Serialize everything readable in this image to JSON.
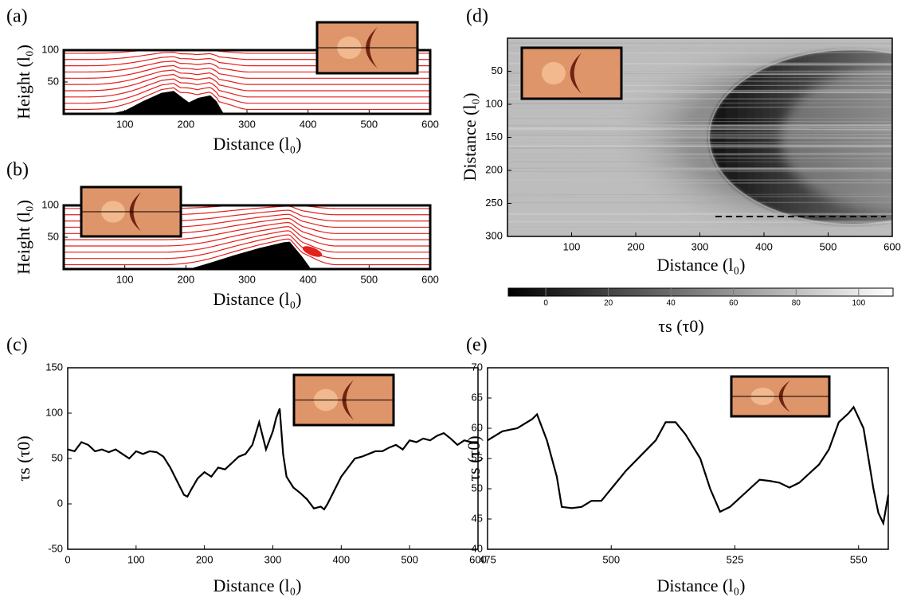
{
  "chart_data": [
    {
      "type": "streamline",
      "panel": "(a)",
      "xlabel": "Distance (l₀)",
      "ylabel": "Height (l₀)",
      "x": [
        75,
        100,
        130,
        160,
        180,
        195,
        205,
        220,
        240,
        250,
        262
      ],
      "values": [
        0,
        5,
        20,
        33,
        36,
        25,
        18,
        25,
        29,
        20,
        0
      ],
      "xlim": [
        0,
        600
      ],
      "xticks": [
        100,
        200,
        300,
        400,
        500,
        600
      ],
      "ylim": [
        0,
        100
      ],
      "yticks": [
        50,
        100
      ],
      "color": "#000000",
      "line_color": "#e3201b"
    },
    {
      "type": "streamline",
      "panel": "(b)",
      "xlabel": "Distance (l₀)",
      "ylabel": "Height (l₀)",
      "x": [
        205,
        240,
        280,
        320,
        360,
        370,
        390,
        405
      ],
      "values": [
        0,
        10,
        22,
        33,
        42,
        43,
        20,
        0
      ],
      "xlim": [
        0,
        600
      ],
      "xticks": [
        100,
        200,
        300,
        400,
        500,
        600
      ],
      "ylim": [
        0,
        100
      ],
      "yticks": [
        50,
        100
      ],
      "color": "#000000",
      "line_color": "#e3201b"
    },
    {
      "type": "line",
      "panel": "(c)",
      "xlabel": "Distance (l₀)",
      "ylabel": "τs  (τ0)",
      "x": [
        0,
        10,
        20,
        30,
        40,
        50,
        60,
        70,
        80,
        90,
        100,
        110,
        120,
        130,
        140,
        150,
        160,
        170,
        175,
        180,
        190,
        200,
        210,
        220,
        230,
        240,
        250,
        260,
        270,
        280,
        285,
        290,
        300,
        305,
        310,
        315,
        320,
        330,
        340,
        350,
        360,
        370,
        375,
        380,
        390,
        400,
        410,
        420,
        430,
        440,
        450,
        460,
        470,
        480,
        490,
        500,
        510,
        520,
        530,
        540,
        550,
        560,
        570,
        580,
        590,
        600
      ],
      "values": [
        60,
        58,
        68,
        65,
        58,
        60,
        57,
        60,
        55,
        50,
        58,
        55,
        58,
        57,
        52,
        40,
        25,
        10,
        8,
        15,
        28,
        35,
        30,
        40,
        38,
        45,
        52,
        55,
        65,
        90,
        75,
        60,
        80,
        95,
        105,
        55,
        30,
        18,
        12,
        5,
        -5,
        -3,
        -6,
        0,
        15,
        30,
        40,
        50,
        52,
        55,
        58,
        58,
        62,
        65,
        60,
        70,
        68,
        72,
        70,
        75,
        78,
        72,
        65,
        70,
        68,
        68
      ],
      "xlim": [
        0,
        600
      ],
      "xticks": [
        0,
        100,
        200,
        300,
        400,
        500,
        600
      ],
      "ylim": [
        -50,
        150
      ],
      "yticks": [
        -50,
        0,
        50,
        100,
        150
      ],
      "color": "#000000"
    },
    {
      "type": "heatmap",
      "panel": "(d)",
      "xlabel": "Distance (l₀)",
      "ylabel": "Distance (l₀)",
      "xlim": [
        0,
        600
      ],
      "xticks": [
        100,
        200,
        300,
        400,
        500,
        600
      ],
      "ylim": [
        300,
        0
      ],
      "yticks": [
        50,
        100,
        150,
        200,
        250,
        300
      ],
      "colorbar": {
        "label": "τs  (τ0)",
        "lim": [
          -12,
          111
        ],
        "ticks": [
          0,
          20,
          40,
          60,
          80,
          100
        ]
      }
    },
    {
      "type": "line",
      "panel": "(e)",
      "xlabel": "Distance (l₀)",
      "ylabel": "τs  (τ0)",
      "x": [
        475,
        478,
        481,
        484,
        485,
        487,
        489,
        490,
        492,
        494,
        496,
        498,
        500,
        503,
        506,
        509,
        511,
        513,
        515,
        518,
        520,
        522,
        524,
        526,
        528,
        530,
        532,
        534,
        536,
        538,
        540,
        542,
        544,
        546,
        548,
        549,
        551,
        553,
        554,
        555,
        556
      ],
      "values": [
        58,
        59.5,
        60,
        61.5,
        62.3,
        58,
        52,
        47,
        46.8,
        47,
        48,
        48,
        50,
        53,
        55.5,
        58,
        61,
        61,
        59,
        55,
        50,
        46.2,
        47,
        48.5,
        50,
        51.5,
        51.3,
        51,
        50.2,
        51,
        52.5,
        54,
        56.5,
        61,
        62.5,
        63.5,
        60,
        50,
        46,
        44.3,
        49
      ],
      "xlim": [
        475,
        556
      ],
      "xticks": [
        475,
        500,
        525,
        550
      ],
      "ylim": [
        40,
        70
      ],
      "yticks": [
        40,
        45,
        50,
        55,
        60,
        65,
        70
      ],
      "color": "#000000"
    }
  ]
}
